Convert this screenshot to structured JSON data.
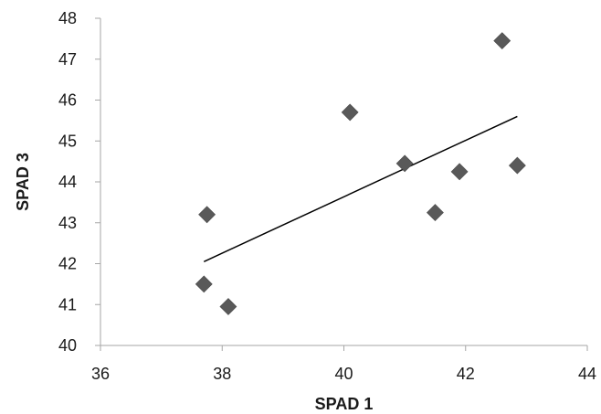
{
  "chart_data": {
    "type": "scatter",
    "title": "",
    "xlabel": "SPAD 1",
    "ylabel": "SPAD 3",
    "xlim": [
      36,
      44
    ],
    "ylim": [
      40,
      48
    ],
    "x_ticks": [
      "36",
      "38",
      "40",
      "42",
      "44"
    ],
    "y_ticks": [
      "40",
      "41",
      "42",
      "43",
      "44",
      "45",
      "46",
      "47",
      "48"
    ],
    "grid": false,
    "legend": "none",
    "marker": "diamond",
    "colors": {
      "marker": "#595959",
      "trendline": "#000000",
      "axis": "#a6a6a6"
    },
    "series": [
      {
        "points": [
          {
            "x": 37.7,
            "y": 41.5
          },
          {
            "x": 37.75,
            "y": 43.2
          },
          {
            "x": 38.1,
            "y": 40.95
          },
          {
            "x": 40.1,
            "y": 45.7
          },
          {
            "x": 41.0,
            "y": 44.45
          },
          {
            "x": 41.5,
            "y": 43.25
          },
          {
            "x": 41.9,
            "y": 44.25
          },
          {
            "x": 42.6,
            "y": 47.45
          },
          {
            "x": 42.85,
            "y": 44.4
          }
        ]
      }
    ],
    "trendline": {
      "type": "linear",
      "from": {
        "x": 37.7,
        "y": 42.05
      },
      "to": {
        "x": 42.85,
        "y": 45.6
      }
    }
  }
}
